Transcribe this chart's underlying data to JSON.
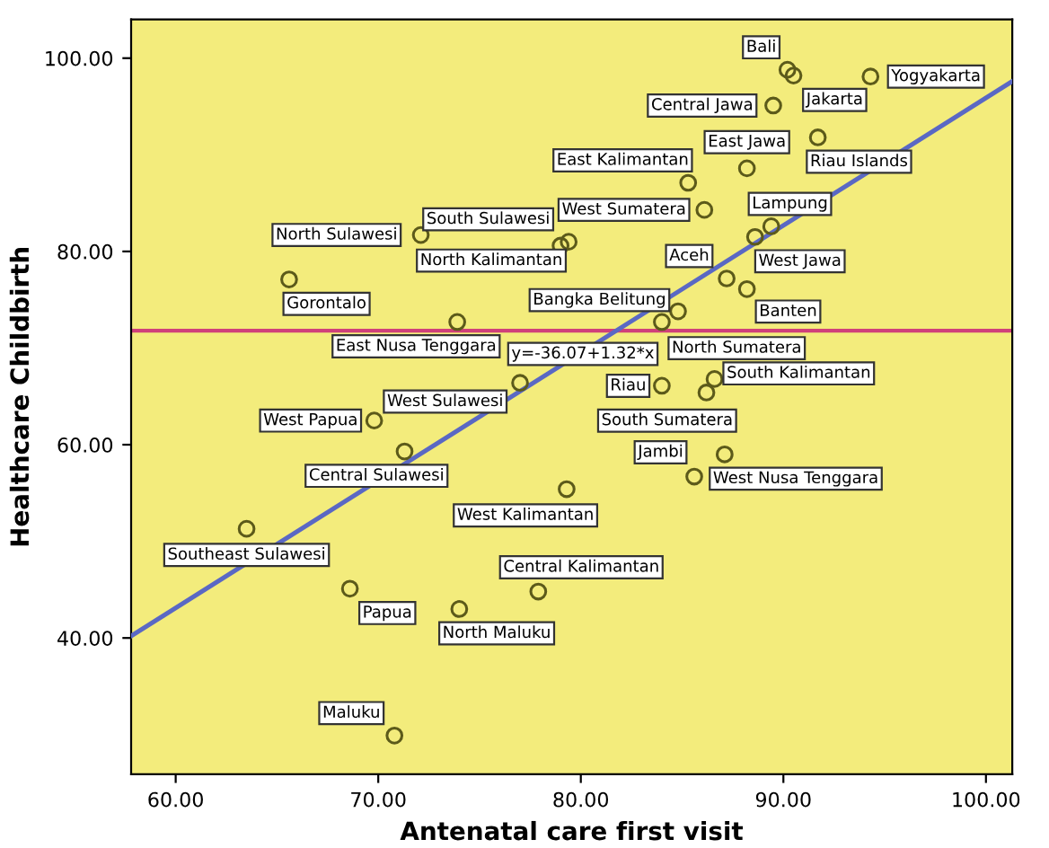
{
  "chart_data": {
    "type": "scatter",
    "xlabel": "Antenatal care first visit",
    "ylabel": "Healthcare Childbirth",
    "xlim": [
      57.8,
      101.3
    ],
    "ylim": [
      25.9,
      104.0
    ],
    "xticks": [
      {
        "value": 60,
        "label": "60.00"
      },
      {
        "value": 70,
        "label": "70.00"
      },
      {
        "value": 80,
        "label": "80.00"
      },
      {
        "value": 90,
        "label": "90.00"
      },
      {
        "value": 100,
        "label": "100.00"
      }
    ],
    "yticks": [
      {
        "value": 40,
        "label": "40.00"
      },
      {
        "value": 60,
        "label": "60.00"
      },
      {
        "value": 80,
        "label": "80.00"
      },
      {
        "value": 100,
        "label": "100.00"
      }
    ],
    "grid": false,
    "legend": false,
    "series": [
      {
        "marker": "circle",
        "color": "#5c5a1a",
        "x": [
          90.2,
          90.5,
          94.3,
          89.5,
          88.2,
          91.7,
          85.3,
          86.1,
          89.4,
          88.6,
          87.2,
          88.2,
          72.1,
          79.4,
          79.0,
          65.6,
          73.9,
          84.8,
          84.0,
          77.0,
          84.0,
          86.6,
          86.2,
          85.6,
          87.1,
          79.3,
          69.8,
          71.3,
          63.5,
          68.6,
          74.0,
          77.9,
          70.8
        ],
        "values": [
          98.8,
          98.2,
          98.1,
          95.1,
          88.6,
          91.8,
          87.1,
          84.3,
          82.6,
          81.5,
          77.2,
          76.1,
          81.7,
          81.0,
          80.6,
          77.1,
          72.7,
          73.8,
          72.7,
          66.4,
          66.1,
          66.8,
          65.4,
          56.7,
          59.0,
          55.4,
          62.5,
          59.3,
          51.3,
          45.1,
          43.0,
          44.8,
          29.9
        ],
        "value_labels": [
          "Bali",
          "Jakarta",
          "Yogyakarta",
          "Central Jawa",
          "East Jawa",
          "Riau Islands",
          "East Kalimantan",
          "West Sumatera",
          "Lampung",
          "West Jawa",
          "Aceh",
          "Banten",
          "North Sulawesi",
          "South Sulawesi",
          "North Kalimantan",
          "Gorontalo",
          "East Nusa Tenggara",
          "Bangka Belitung",
          "North Sumatera",
          "West Sulawesi",
          "Riau",
          "South Kalimantan",
          "South Sumatera",
          "Jambi",
          "West Nusa Tenggara",
          "West Kalimantan",
          "West Papua",
          "Central Sulawesi",
          "Southeast Sulawesi",
          "Papua",
          "North Maluku",
          "Central Kalimantan",
          "Maluku"
        ]
      },
      {
        "type": "line",
        "color": "#5a68c4",
        "x": [
          57.8,
          101.3
        ],
        "values": [
          40.2,
          97.6
        ]
      }
    ],
    "ref_lines": [
      {
        "axis": "y",
        "value": 71.8,
        "color": "#d0407a"
      }
    ],
    "annotations": [
      {
        "text": "y=-36.07+1.32*x",
        "x": 80.1,
        "y": 69.4
      }
    ]
  }
}
